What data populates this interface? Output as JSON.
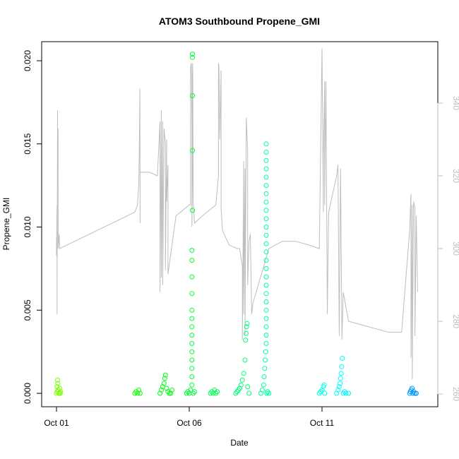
{
  "chart_data": {
    "type": "scatter",
    "title": "ATOM3 Southbound Propene_GMI",
    "xlabel": "Date",
    "ylabel": "Propene_GMI",
    "x_domain": [
      0.0,
      13.75
    ],
    "ylim": [
      0.0,
      0.0205
    ],
    "y2lim": [
      258.5,
      358.0
    ],
    "x_ticks": [
      {
        "value": 0,
        "label": "Oct 01"
      },
      {
        "value": 5,
        "label": "Oct 06"
      },
      {
        "value": 10,
        "label": "Oct 11"
      }
    ],
    "y_ticks": [
      {
        "value": 0.0,
        "label": "0.000"
      },
      {
        "value": 0.005,
        "label": "0.005"
      },
      {
        "value": 0.01,
        "label": "0.010"
      },
      {
        "value": 0.015,
        "label": "0.015"
      },
      {
        "value": 0.02,
        "label": "0.020"
      }
    ],
    "y2_ticks": [
      {
        "value": 260,
        "label": "260"
      },
      {
        "value": 280,
        "label": "280"
      },
      {
        "value": 300,
        "label": "300"
      },
      {
        "value": 320,
        "label": "320"
      },
      {
        "value": 340,
        "label": "340"
      }
    ],
    "series_color_note": "point color varies with date from green (Oct 01) through cyan to blue (Oct 15)",
    "points": [
      {
        "x": 0.0,
        "y": 0.0
      },
      {
        "x": 0.03,
        "y": 0.0001
      },
      {
        "x": 0.06,
        "y": 0.0002
      },
      {
        "x": 0.09,
        "y": 0.0
      },
      {
        "x": 0.12,
        "y": 0.0003
      },
      {
        "x": 0.15,
        "y": 0.0001
      },
      {
        "x": 0.02,
        "y": 0.0004
      },
      {
        "x": 0.05,
        "y": 0.0006
      },
      {
        "x": 0.04,
        "y": 0.0008
      },
      {
        "x": 0.1,
        "y": 0.0
      },
      {
        "x": 0.14,
        "y": 0.0
      },
      {
        "x": 2.95,
        "y": 0.0
      },
      {
        "x": 3.0,
        "y": 0.0001
      },
      {
        "x": 3.05,
        "y": 0.0
      },
      {
        "x": 3.1,
        "y": 0.0002
      },
      {
        "x": 3.15,
        "y": 0.0
      },
      {
        "x": 3.9,
        "y": 0.0
      },
      {
        "x": 3.95,
        "y": 0.0002
      },
      {
        "x": 4.0,
        "y": 0.0004
      },
      {
        "x": 4.05,
        "y": 0.0006
      },
      {
        "x": 4.08,
        "y": 0.0009
      },
      {
        "x": 4.1,
        "y": 0.0011
      },
      {
        "x": 4.15,
        "y": 0.0003
      },
      {
        "x": 4.2,
        "y": 0.0001
      },
      {
        "x": 4.25,
        "y": 0.0
      },
      {
        "x": 4.3,
        "y": 0.0
      },
      {
        "x": 4.35,
        "y": 0.0002
      },
      {
        "x": 4.9,
        "y": 0.0
      },
      {
        "x": 4.95,
        "y": 0.0001
      },
      {
        "x": 5.0,
        "y": 0.0
      },
      {
        "x": 5.05,
        "y": 0.0002
      },
      {
        "x": 5.1,
        "y": 0.0005
      },
      {
        "x": 5.1,
        "y": 0.001
      },
      {
        "x": 5.1,
        "y": 0.0015
      },
      {
        "x": 5.1,
        "y": 0.002
      },
      {
        "x": 5.1,
        "y": 0.0025
      },
      {
        "x": 5.1,
        "y": 0.003
      },
      {
        "x": 5.1,
        "y": 0.0035
      },
      {
        "x": 5.1,
        "y": 0.004
      },
      {
        "x": 5.1,
        "y": 0.0045
      },
      {
        "x": 5.1,
        "y": 0.005
      },
      {
        "x": 5.1,
        "y": 0.006
      },
      {
        "x": 5.1,
        "y": 0.007
      },
      {
        "x": 5.1,
        "y": 0.008
      },
      {
        "x": 5.1,
        "y": 0.0086
      },
      {
        "x": 5.12,
        "y": 0.011
      },
      {
        "x": 5.12,
        "y": 0.0146
      },
      {
        "x": 5.12,
        "y": 0.0179
      },
      {
        "x": 5.12,
        "y": 0.0202
      },
      {
        "x": 5.12,
        "y": 0.0204
      },
      {
        "x": 5.15,
        "y": 0.0
      },
      {
        "x": 5.2,
        "y": 0.0001
      },
      {
        "x": 5.8,
        "y": 0.0
      },
      {
        "x": 5.85,
        "y": 0.0001
      },
      {
        "x": 5.9,
        "y": 0.0
      },
      {
        "x": 5.95,
        "y": 0.0002
      },
      {
        "x": 6.0,
        "y": 0.0
      },
      {
        "x": 6.05,
        "y": 0.0001
      },
      {
        "x": 6.75,
        "y": 0.0
      },
      {
        "x": 6.8,
        "y": 0.0001
      },
      {
        "x": 6.85,
        "y": 0.0002
      },
      {
        "x": 6.9,
        "y": 0.0003
      },
      {
        "x": 6.95,
        "y": 0.0005
      },
      {
        "x": 7.0,
        "y": 0.0008
      },
      {
        "x": 7.05,
        "y": 0.0012
      },
      {
        "x": 7.1,
        "y": 0.002
      },
      {
        "x": 7.12,
        "y": 0.0032
      },
      {
        "x": 7.14,
        "y": 0.0036
      },
      {
        "x": 7.16,
        "y": 0.004
      },
      {
        "x": 7.18,
        "y": 0.0042
      },
      {
        "x": 7.2,
        "y": 0.0004
      },
      {
        "x": 7.25,
        "y": 0.0
      },
      {
        "x": 7.7,
        "y": 0.0
      },
      {
        "x": 7.75,
        "y": 0.0002
      },
      {
        "x": 7.8,
        "y": 0.0005
      },
      {
        "x": 7.82,
        "y": 0.001
      },
      {
        "x": 7.84,
        "y": 0.0015
      },
      {
        "x": 7.86,
        "y": 0.002
      },
      {
        "x": 7.88,
        "y": 0.0025
      },
      {
        "x": 7.9,
        "y": 0.003
      },
      {
        "x": 7.9,
        "y": 0.0035
      },
      {
        "x": 7.9,
        "y": 0.004
      },
      {
        "x": 7.9,
        "y": 0.0045
      },
      {
        "x": 7.9,
        "y": 0.005
      },
      {
        "x": 7.9,
        "y": 0.0055
      },
      {
        "x": 7.9,
        "y": 0.006
      },
      {
        "x": 7.9,
        "y": 0.0065
      },
      {
        "x": 7.9,
        "y": 0.007
      },
      {
        "x": 7.9,
        "y": 0.0075
      },
      {
        "x": 7.9,
        "y": 0.008
      },
      {
        "x": 7.9,
        "y": 0.0085
      },
      {
        "x": 7.9,
        "y": 0.009
      },
      {
        "x": 7.9,
        "y": 0.0095
      },
      {
        "x": 7.9,
        "y": 0.01
      },
      {
        "x": 7.9,
        "y": 0.0105
      },
      {
        "x": 7.9,
        "y": 0.011
      },
      {
        "x": 7.9,
        "y": 0.0115
      },
      {
        "x": 7.9,
        "y": 0.012
      },
      {
        "x": 7.9,
        "y": 0.0125
      },
      {
        "x": 7.9,
        "y": 0.013
      },
      {
        "x": 7.9,
        "y": 0.0135
      },
      {
        "x": 7.9,
        "y": 0.014
      },
      {
        "x": 7.9,
        "y": 0.0145
      },
      {
        "x": 7.9,
        "y": 0.015
      },
      {
        "x": 7.92,
        "y": 0.0
      },
      {
        "x": 7.95,
        "y": 0.0001
      },
      {
        "x": 8.0,
        "y": 0.0
      },
      {
        "x": 9.9,
        "y": 0.0
      },
      {
        "x": 9.95,
        "y": 0.0001
      },
      {
        "x": 10.0,
        "y": 0.0002
      },
      {
        "x": 10.05,
        "y": 0.0004
      },
      {
        "x": 10.08,
        "y": 0.0005
      },
      {
        "x": 10.1,
        "y": 0.0
      },
      {
        "x": 10.55,
        "y": 0.0
      },
      {
        "x": 10.6,
        "y": 0.0002
      },
      {
        "x": 10.65,
        "y": 0.0004
      },
      {
        "x": 10.68,
        "y": 0.0006
      },
      {
        "x": 10.7,
        "y": 0.0009
      },
      {
        "x": 10.72,
        "y": 0.0012
      },
      {
        "x": 10.74,
        "y": 0.0016
      },
      {
        "x": 10.76,
        "y": 0.0021
      },
      {
        "x": 10.8,
        "y": 0.0
      },
      {
        "x": 10.85,
        "y": 0.0001
      },
      {
        "x": 10.9,
        "y": 0.0
      },
      {
        "x": 11.0,
        "y": 0.0
      },
      {
        "x": 13.3,
        "y": 0.0
      },
      {
        "x": 13.33,
        "y": 0.0001
      },
      {
        "x": 13.36,
        "y": 0.0002
      },
      {
        "x": 13.39,
        "y": 0.0003
      },
      {
        "x": 13.42,
        "y": 0.0
      },
      {
        "x": 13.45,
        "y": 0.0001
      },
      {
        "x": 13.5,
        "y": 0.0
      },
      {
        "x": 13.55,
        "y": 0.0
      }
    ],
    "secondary_line": {
      "color": "#bebebe",
      "axis": "right",
      "points": [
        [
          0.0,
          303
        ],
        [
          0.0,
          298
        ],
        [
          0.02,
          312
        ],
        [
          0.02,
          282
        ],
        [
          0.04,
          338
        ],
        [
          0.04,
          320
        ],
        [
          0.06,
          333
        ],
        [
          0.06,
          300
        ],
        [
          0.1,
          304
        ],
        [
          0.12,
          300
        ],
        [
          2.95,
          310
        ],
        [
          3.0,
          311
        ],
        [
          3.05,
          312
        ],
        [
          3.1,
          318
        ],
        [
          3.12,
          328
        ],
        [
          3.14,
          344
        ],
        [
          3.15,
          307
        ],
        [
          3.15,
          321
        ],
        [
          3.5,
          321
        ],
        [
          3.8,
          320
        ],
        [
          3.9,
          335
        ],
        [
          3.9,
          288
        ],
        [
          3.95,
          338
        ],
        [
          3.95,
          292
        ],
        [
          4.0,
          335
        ],
        [
          4.0,
          290
        ],
        [
          4.05,
          333
        ],
        [
          4.1,
          329
        ],
        [
          4.1,
          294
        ],
        [
          4.15,
          330
        ],
        [
          4.15,
          313
        ],
        [
          4.2,
          323
        ],
        [
          4.2,
          293
        ],
        [
          4.5,
          309
        ],
        [
          5.0,
          312
        ],
        [
          5.05,
          312
        ],
        [
          5.05,
          341
        ],
        [
          5.05,
          350
        ],
        [
          5.08,
          351
        ],
        [
          5.08,
          350
        ],
        [
          5.1,
          334
        ],
        [
          5.1,
          306
        ],
        [
          5.12,
          320
        ],
        [
          5.12,
          348
        ],
        [
          5.13,
          351
        ],
        [
          5.15,
          313
        ],
        [
          5.2,
          307
        ],
        [
          5.5,
          309
        ],
        [
          6.0,
          312
        ],
        [
          6.1,
          320
        ],
        [
          6.1,
          336
        ],
        [
          6.1,
          351
        ],
        [
          6.12,
          350
        ],
        [
          6.15,
          330
        ],
        [
          6.2,
          349
        ],
        [
          6.2,
          311
        ],
        [
          6.25,
          305
        ],
        [
          6.5,
          301
        ],
        [
          6.8,
          300
        ],
        [
          6.9,
          300
        ],
        [
          7.0,
          295
        ],
        [
          7.0,
          275
        ],
        [
          7.05,
          324
        ],
        [
          7.05,
          282
        ],
        [
          7.1,
          322
        ],
        [
          7.1,
          276
        ],
        [
          7.15,
          336
        ],
        [
          7.2,
          327
        ],
        [
          7.2,
          290
        ],
        [
          7.25,
          302
        ],
        [
          7.3,
          304
        ],
        [
          7.35,
          282
        ],
        [
          7.4,
          285
        ],
        [
          8.0,
          300
        ],
        [
          8.5,
          302
        ],
        [
          9.0,
          302
        ],
        [
          9.5,
          301
        ],
        [
          9.9,
          300
        ],
        [
          10.0,
          355
        ],
        [
          10.05,
          310
        ],
        [
          10.05,
          325
        ],
        [
          10.1,
          346
        ],
        [
          10.1,
          312
        ],
        [
          10.15,
          346
        ],
        [
          10.2,
          282
        ],
        [
          10.25,
          310
        ],
        [
          10.55,
          320
        ],
        [
          10.6,
          323
        ],
        [
          10.65,
          276
        ],
        [
          10.7,
          322
        ],
        [
          10.75,
          275
        ],
        [
          10.8,
          288
        ],
        [
          11.0,
          280
        ],
        [
          11.5,
          279
        ],
        [
          12.0,
          278
        ],
        [
          12.5,
          277
        ],
        [
          13.0,
          277
        ],
        [
          13.3,
          305
        ],
        [
          13.35,
          315
        ],
        [
          13.35,
          270
        ],
        [
          13.4,
          312
        ],
        [
          13.4,
          264
        ],
        [
          13.45,
          313
        ],
        [
          13.5,
          311
        ],
        [
          13.5,
          276
        ],
        [
          13.55,
          309
        ],
        [
          13.6,
          288
        ]
      ]
    }
  }
}
